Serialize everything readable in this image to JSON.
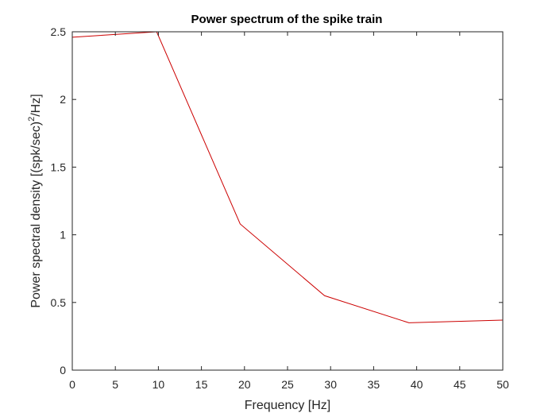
{
  "chart_data": {
    "type": "line",
    "title": "Power spectrum of the spike train",
    "xlabel": "Frequency [Hz]",
    "ylabel_main": "Power spectral density [(spk/sec)",
    "ylabel_sup": "2",
    "ylabel_tail": "/Hz]",
    "xlim": [
      0,
      50
    ],
    "ylim": [
      0,
      2.5
    ],
    "xticks": [
      0,
      5,
      10,
      15,
      20,
      25,
      30,
      35,
      40,
      45,
      50
    ],
    "xtick_labels": [
      "0",
      "5",
      "10",
      "15",
      "20",
      "25",
      "30",
      "35",
      "40",
      "45",
      "50"
    ],
    "yticks": [
      0,
      0.5,
      1,
      1.5,
      2,
      2.5
    ],
    "ytick_labels": [
      "0",
      "0.5",
      "1",
      "1.5",
      "2",
      "2.5"
    ],
    "grid": false,
    "series": [
      {
        "color": "#cc0000",
        "x": [
          0,
          9.8,
          19.5,
          29.3,
          39.1,
          50
        ],
        "y": [
          2.46,
          2.5,
          1.08,
          0.55,
          0.35,
          0.37
        ]
      }
    ]
  }
}
